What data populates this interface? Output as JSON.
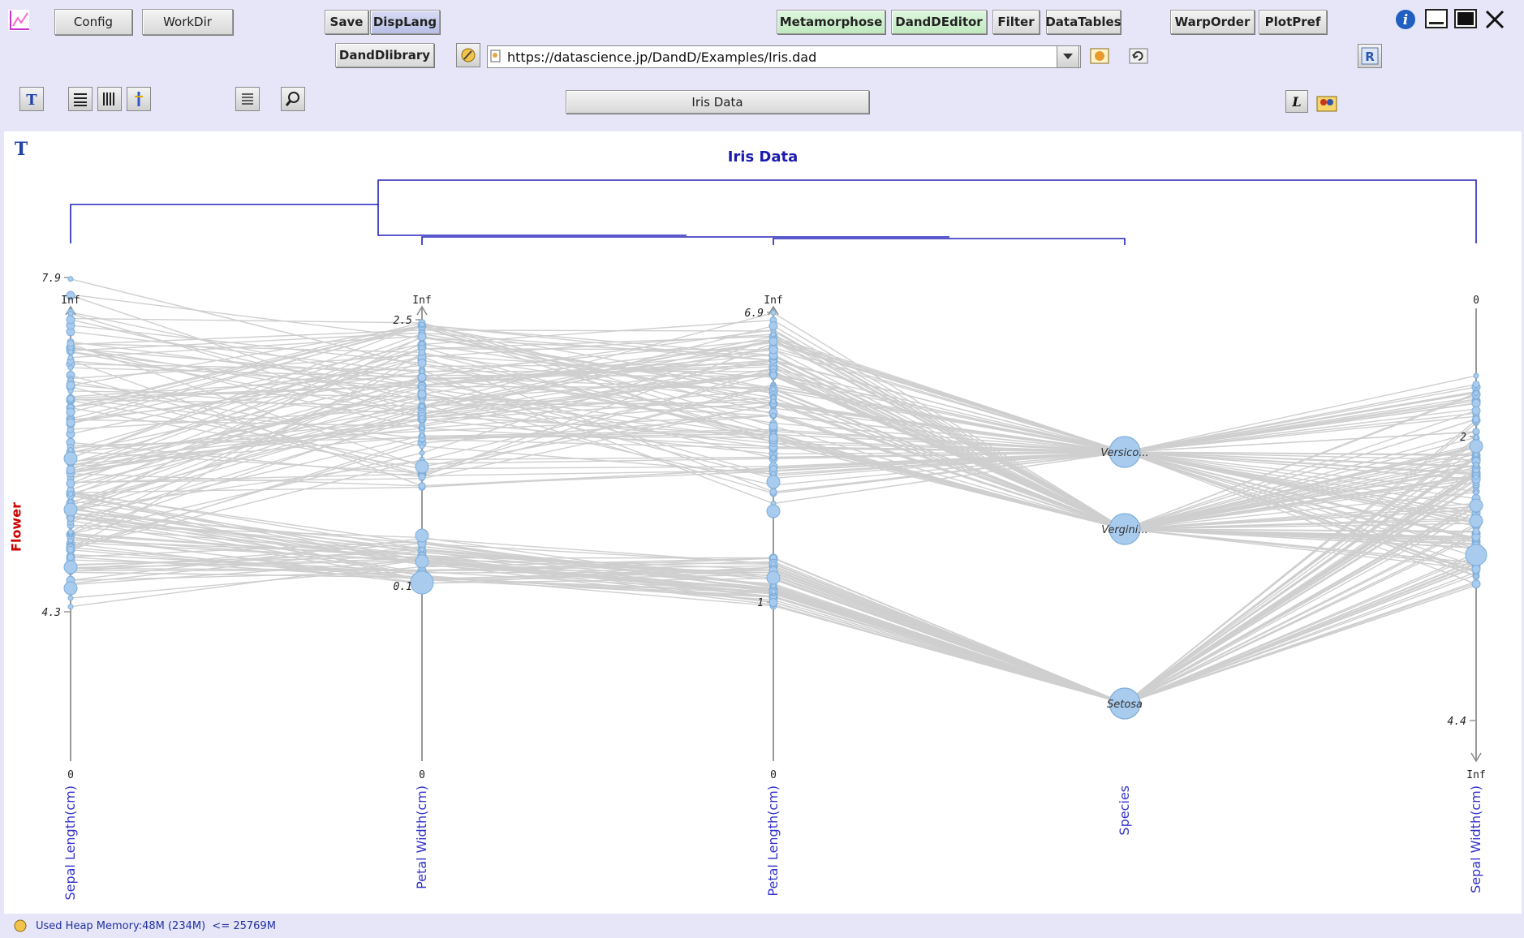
{
  "toolbar": {
    "config": "Config",
    "workdir": "WorkDir",
    "save": "Save",
    "displang": "DispLang",
    "metamorphose": "Metamorphose",
    "danddeditor": "DandDEditor",
    "filter": "Filter",
    "datatables": "DataTables",
    "warporder": "WarpOrder",
    "plotpref": "PlotPref",
    "library": "DandDlibrary",
    "url": "https://datascience.jp/DandD/Examples/Iris.dad",
    "data_title_button": "Iris Data"
  },
  "plot": {
    "title": "Iris Data",
    "row_label": "Flower",
    "axes": [
      {
        "name": "Sepal Length(cm)",
        "top_label": "Inf",
        "bottom_label": "0",
        "max": "7.9",
        "min": "4.3"
      },
      {
        "name": "Petal Width(cm)",
        "top_label": "Inf",
        "bottom_label": "0",
        "max": "2.5",
        "min": "0.1"
      },
      {
        "name": "Petal Length(cm)",
        "top_label": "Inf",
        "bottom_label": "0",
        "max": "6.9",
        "min": "1"
      },
      {
        "name": "Species",
        "categories": [
          "Versico...",
          "Vergini...",
          "Setosa"
        ]
      },
      {
        "name": "Sepal Width(cm)",
        "top_label": "0",
        "bottom_label": "Inf",
        "max": "2",
        "min": "4.4"
      }
    ]
  },
  "status": {
    "heap": "Used Heap Memory:48M (234M)  <= 25769M"
  },
  "colors": {
    "background": "#e6e6f8",
    "tree": "#2222bb",
    "axis_label": "#3333cc",
    "row_label": "#cc0000",
    "line": "#cfcfcf",
    "node": "#a8cbee"
  }
}
